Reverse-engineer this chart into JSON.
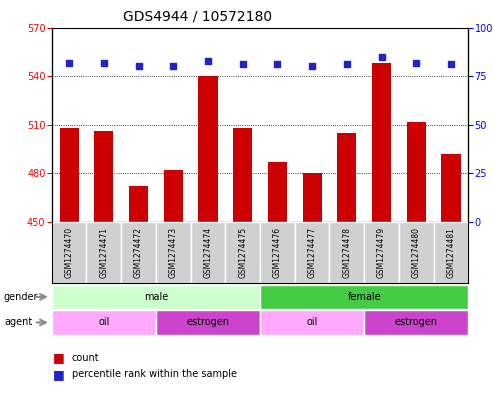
{
  "title": "GDS4944 / 10572180",
  "samples": [
    "GSM1274470",
    "GSM1274471",
    "GSM1274472",
    "GSM1274473",
    "GSM1274474",
    "GSM1274475",
    "GSM1274476",
    "GSM1274477",
    "GSM1274478",
    "GSM1274479",
    "GSM1274480",
    "GSM1274481"
  ],
  "counts": [
    508,
    506,
    472,
    482,
    540,
    508,
    487,
    480,
    505,
    548,
    512,
    492
  ],
  "percentiles": [
    82,
    82,
    80,
    80,
    83,
    81,
    81,
    80,
    81,
    85,
    82,
    81
  ],
  "ylim_left": [
    450,
    570
  ],
  "ylim_right": [
    0,
    100
  ],
  "yticks_left": [
    450,
    480,
    510,
    540,
    570
  ],
  "yticks_right": [
    0,
    25,
    50,
    75,
    100
  ],
  "bar_color": "#cc0000",
  "dot_color": "#2222cc",
  "gender_male_color": "#ccffcc",
  "gender_female_color": "#44cc44",
  "agent_oil_color": "#ffaaff",
  "agent_estrogen_color": "#cc44cc",
  "sample_box_color": "#d0d0d0",
  "legend_count_color": "#cc0000",
  "legend_dot_color": "#2222cc",
  "title_fontsize": 10,
  "axis_fontsize": 7,
  "sample_fontsize": 5.5,
  "annotation_fontsize": 7,
  "legend_fontsize": 7
}
